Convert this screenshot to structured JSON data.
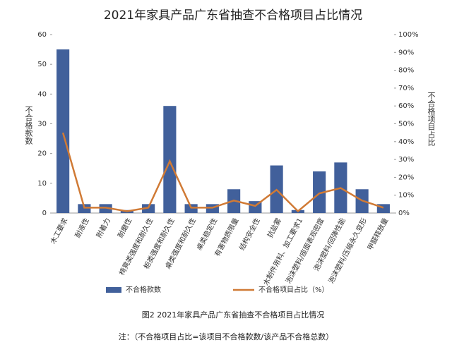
{
  "chart_data": {
    "type": "bar-line",
    "title": "2021年家具产品广东省抽查不合格项目占比情况",
    "categories": [
      "木工要求",
      "耐液性",
      "附着力",
      "耐磨性",
      "椅凳类强度和耐久性",
      "柜类强度和耐久性",
      "桌类强度和耐久性",
      "桌类稳定性",
      "有害物质限量",
      "结构安全性",
      "抗盐雾",
      "木制件用料、加工要求1",
      "泡沫塑料/座面表观密度",
      "泡沫塑料/回弹性能",
      "泡沫塑料/压缩永久变形",
      "甲醛释放量"
    ],
    "series": [
      {
        "name": "不合格款数",
        "color": "#41609b",
        "type": "bar",
        "values": [
          55,
          3,
          3,
          1,
          3,
          36,
          3,
          3,
          8,
          4,
          16,
          1,
          14,
          17,
          8,
          3
        ]
      },
      {
        "name": "不合格项目占比（%）",
        "color": "#d07a35",
        "type": "line",
        "axis": "y2",
        "values": [
          45,
          3,
          3,
          1,
          3,
          29,
          3,
          3,
          7,
          4,
          13,
          1,
          11,
          14,
          7,
          3
        ]
      }
    ],
    "y_label": "不合格款数",
    "y2_label": "不合格项目占比",
    "ylim": [
      0,
      60
    ],
    "yticks": [
      0,
      10,
      20,
      30,
      40,
      50,
      60
    ],
    "y2lim": [
      0,
      100
    ],
    "y2ticks": [
      {
        "value": 0,
        "label": "0%"
      },
      {
        "value": 10,
        "label": "10%"
      },
      {
        "value": 20,
        "label": "20%"
      },
      {
        "value": 30,
        "label": "30%"
      },
      {
        "value": 40,
        "label": "40%"
      },
      {
        "value": 50,
        "label": "50%"
      },
      {
        "value": 60,
        "label": "60%"
      },
      {
        "value": 70,
        "label": "70%"
      },
      {
        "value": 80,
        "label": "80%"
      },
      {
        "value": 90,
        "label": "90%"
      },
      {
        "value": 100,
        "label": "100%"
      }
    ],
    "caption": "图2 2021年家具产品广东省抽查不合格项目占比情况",
    "note": "注：（不合格项目占比=该项目不合格款数/该产品不合格总数）"
  }
}
